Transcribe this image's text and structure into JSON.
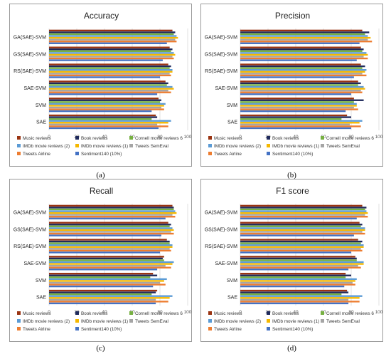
{
  "chart_data": [
    {
      "type": "bar",
      "orientation": "horizontal",
      "title": "Accuracy",
      "caption": "(a)",
      "categories": [
        "GA(SAE)-SVM",
        "GS(SAE)-SVM",
        "RS(SAE)-SVM",
        "SAE-SVM",
        "SVM",
        "SAE"
      ],
      "xlim": [
        0,
        100
      ],
      "xticks": [
        "0",
        "20",
        "40",
        "60",
        "80",
        "100"
      ],
      "grid": true,
      "legend_position": "bottom",
      "series": [
        {
          "name": "Music reviews",
          "color": "#9a3412",
          "values": [
            89,
            87,
            86,
            84,
            79,
            77
          ]
        },
        {
          "name": "Book reviews",
          "color": "#1f2a5c",
          "values": [
            91,
            89,
            88,
            86,
            81,
            78
          ]
        },
        {
          "name": "Cornell movie reviews 6",
          "color": "#76b041",
          "values": [
            90,
            88,
            87,
            85,
            80,
            74
          ]
        },
        {
          "name": "IMDb movie reviews (2)",
          "color": "#5b9bd5",
          "values": [
            92,
            90,
            89,
            89,
            84,
            88
          ]
        },
        {
          "name": "IMDb movie reviews (1)",
          "color": "#f5b800",
          "values": [
            93,
            91,
            89,
            90,
            83,
            86
          ]
        },
        {
          "name": "Tweets SemEval",
          "color": "#a5a5a5",
          "values": [
            91,
            89,
            87,
            86,
            81,
            78
          ]
        },
        {
          "name": "Tweets Airline",
          "color": "#ed7d31",
          "values": [
            92,
            90,
            88,
            88,
            83,
            86
          ]
        },
        {
          "name": "Sentiment140 (10%)",
          "color": "#4472c4",
          "values": [
            85,
            82,
            80,
            78,
            74,
            79
          ]
        }
      ]
    },
    {
      "type": "bar",
      "orientation": "horizontal",
      "title": "Precision",
      "caption": "(b)",
      "categories": [
        "GA(SAE)-SVM",
        "GS(SAE)-SVM",
        "RS(SAE)-SVM",
        "SAE-SVM",
        "SVM",
        "SAE"
      ],
      "xlim": [
        0,
        100
      ],
      "xticks": [
        "0",
        "20",
        "40",
        "60",
        "80",
        "100"
      ],
      "grid": true,
      "legend_position": "bottom",
      "series": [
        {
          "name": "Music reviews",
          "color": "#9a3412",
          "values": [
            88,
            87,
            87,
            85,
            82,
            77
          ]
        },
        {
          "name": "Book reviews",
          "color": "#1f2a5c",
          "values": [
            93,
            89,
            90,
            87,
            89,
            80
          ]
        },
        {
          "name": "Cornell movie reviews 6",
          "color": "#76b041",
          "values": [
            90,
            88,
            88,
            85,
            82,
            73
          ]
        },
        {
          "name": "IMDb movie reviews (2)",
          "color": "#5b9bd5",
          "values": [
            92,
            91,
            91,
            89,
            84,
            88
          ]
        },
        {
          "name": "IMDb movie reviews (1)",
          "color": "#f5b800",
          "values": [
            94,
            92,
            90,
            90,
            84,
            86
          ]
        },
        {
          "name": "Tweets SemEval",
          "color": "#a5a5a5",
          "values": [
            92,
            89,
            88,
            87,
            82,
            79
          ]
        },
        {
          "name": "Tweets Airline",
          "color": "#ed7d31",
          "values": [
            95,
            92,
            91,
            88,
            85,
            87
          ]
        },
        {
          "name": "Sentiment140 (10%)",
          "color": "#4472c4",
          "values": [
            86,
            84,
            82,
            80,
            76,
            80
          ]
        }
      ]
    },
    {
      "type": "bar",
      "orientation": "horizontal",
      "title": "Recall",
      "caption": "(c)",
      "categories": [
        "GA(SAE)-SVM",
        "GS(SAE)-SVM",
        "RS(SAE)-SVM",
        "SAE-SVM",
        "SVM",
        "SAE"
      ],
      "xlim": [
        0,
        100
      ],
      "xticks": [
        "0",
        "20",
        "40",
        "60",
        "80",
        "100"
      ],
      "grid": true,
      "legend_position": "bottom",
      "series": [
        {
          "name": "Music reviews",
          "color": "#9a3412",
          "values": [
            89,
            86,
            85,
            83,
            75,
            78
          ]
        },
        {
          "name": "Book reviews",
          "color": "#1f2a5c",
          "values": [
            90,
            88,
            87,
            82,
            78,
            77
          ]
        },
        {
          "name": "Cornell movie reviews 6",
          "color": "#76b041",
          "values": [
            90,
            87,
            87,
            83,
            73,
            74
          ]
        },
        {
          "name": "IMDb movie reviews (2)",
          "color": "#5b9bd5",
          "values": [
            91,
            89,
            89,
            90,
            85,
            89
          ]
        },
        {
          "name": "IMDb movie reviews (1)",
          "color": "#f5b800",
          "values": [
            92,
            90,
            89,
            89,
            83,
            87
          ]
        },
        {
          "name": "Tweets SemEval",
          "color": "#a5a5a5",
          "values": [
            89,
            88,
            87,
            84,
            80,
            77
          ]
        },
        {
          "name": "Tweets Airline",
          "color": "#ed7d31",
          "values": [
            91,
            90,
            88,
            88,
            84,
            86
          ]
        },
        {
          "name": "Sentiment140 (10%)",
          "color": "#4472c4",
          "values": [
            84,
            81,
            80,
            78,
            75,
            77
          ]
        }
      ]
    },
    {
      "type": "bar",
      "orientation": "horizontal",
      "title": "F1 score",
      "caption": "(d)",
      "categories": [
        "GA(SAE)-SVM",
        "GS(SAE)-SVM",
        "RS(SAE)-SVM",
        "SAE-SVM",
        "SVM",
        "SAE"
      ],
      "xlim": [
        0,
        100
      ],
      "xticks": [
        "0",
        "20",
        "40",
        "60",
        "80",
        "100"
      ],
      "grid": true,
      "legend_position": "bottom",
      "series": [
        {
          "name": "Music reviews",
          "color": "#9a3412",
          "values": [
            88,
            86,
            85,
            83,
            76,
            77
          ]
        },
        {
          "name": "Book reviews",
          "color": "#1f2a5c",
          "values": [
            91,
            88,
            88,
            84,
            80,
            78
          ]
        },
        {
          "name": "Cornell movie reviews 6",
          "color": "#76b041",
          "values": [
            90,
            87,
            87,
            84,
            76,
            73
          ]
        },
        {
          "name": "IMDb movie reviews (2)",
          "color": "#5b9bd5",
          "values": [
            91,
            90,
            89,
            89,
            84,
            88
          ]
        },
        {
          "name": "IMDb movie reviews (1)",
          "color": "#f5b800",
          "values": [
            92,
            90,
            89,
            89,
            83,
            86
          ]
        },
        {
          "name": "Tweets SemEval",
          "color": "#a5a5a5",
          "values": [
            90,
            88,
            87,
            85,
            81,
            78
          ]
        },
        {
          "name": "Tweets Airline",
          "color": "#ed7d31",
          "values": [
            92,
            90,
            88,
            87,
            83,
            86
          ]
        },
        {
          "name": "Sentiment140 (10%)",
          "color": "#4472c4",
          "values": [
            84,
            82,
            80,
            78,
            75,
            78
          ]
        }
      ]
    }
  ]
}
